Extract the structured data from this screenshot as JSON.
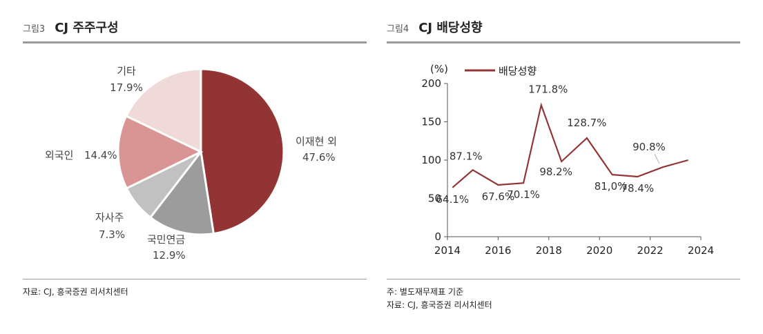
{
  "left": {
    "fig_num": "그림3",
    "fig_title": "CJ 주주구성",
    "source": "자료: CJ, 흥국증권 리서치센터"
  },
  "right": {
    "fig_num": "그림4",
    "fig_title": "CJ 배당성향",
    "note": "주: 별도재무제표 기준",
    "source": "자료: CJ, 흥국증권 리서치센터"
  },
  "chart_data": [
    {
      "type": "pie",
      "title": "CJ 주주구성",
      "slices": [
        {
          "name": "이재현 외",
          "value": 47.6,
          "value_label": "47.6%",
          "color": "#933434"
        },
        {
          "name": "국민연금",
          "value": 12.9,
          "value_label": "12.9%",
          "color": "#9c9c9c"
        },
        {
          "name": "자사주",
          "value": 7.3,
          "value_label": "7.3%",
          "color": "#c1c1c1"
        },
        {
          "name": "외국인",
          "value": 14.4,
          "value_label": "14.4%",
          "color": "#d99593"
        },
        {
          "name": "기타",
          "value": 17.9,
          "value_label": "17.9%",
          "color": "#f0d9d9"
        }
      ]
    },
    {
      "type": "line",
      "title": "CJ 배당성향",
      "ylabel": "(%)",
      "ylim": [
        0,
        200
      ],
      "yticks": [
        0,
        50,
        100,
        150,
        200
      ],
      "xlim": [
        2014,
        2024
      ],
      "xticks": [
        2014,
        2016,
        2018,
        2020,
        2022,
        2024
      ],
      "legend": "배당성향",
      "color": "#933434",
      "series": [
        {
          "name": "배당성향",
          "x": [
            2014.2,
            2015,
            2016,
            2017,
            2017.7,
            2018.5,
            2019.5,
            2020.5,
            2021.5,
            2022.5,
            2023.5
          ],
          "values": [
            64.1,
            87.1,
            67.6,
            70.1,
            171.8,
            98.2,
            128.7,
            81.0,
            78.4,
            90.8,
            100.0
          ]
        }
      ],
      "data_labels": [
        {
          "text": "64.1%",
          "x": 2014.2,
          "y": 64.1
        },
        {
          "text": "87.1%",
          "x": 2015,
          "y": 87.1
        },
        {
          "text": "67.6%",
          "x": 2016,
          "y": 67.6
        },
        {
          "text": "70.1%",
          "x": 2017,
          "y": 70.1
        },
        {
          "text": "171.8%",
          "x": 2017.7,
          "y": 171.8
        },
        {
          "text": "98.2%",
          "x": 2018.5,
          "y": 98.2
        },
        {
          "text": "128.7%",
          "x": 2019.5,
          "y": 128.7
        },
        {
          "text": "81,0%",
          "x": 2020.5,
          "y": 81.0
        },
        {
          "text": "78.4%",
          "x": 2021.5,
          "y": 78.4
        },
        {
          "text": "90.8%",
          "x": 2022.5,
          "y": 90.8
        }
      ]
    }
  ]
}
